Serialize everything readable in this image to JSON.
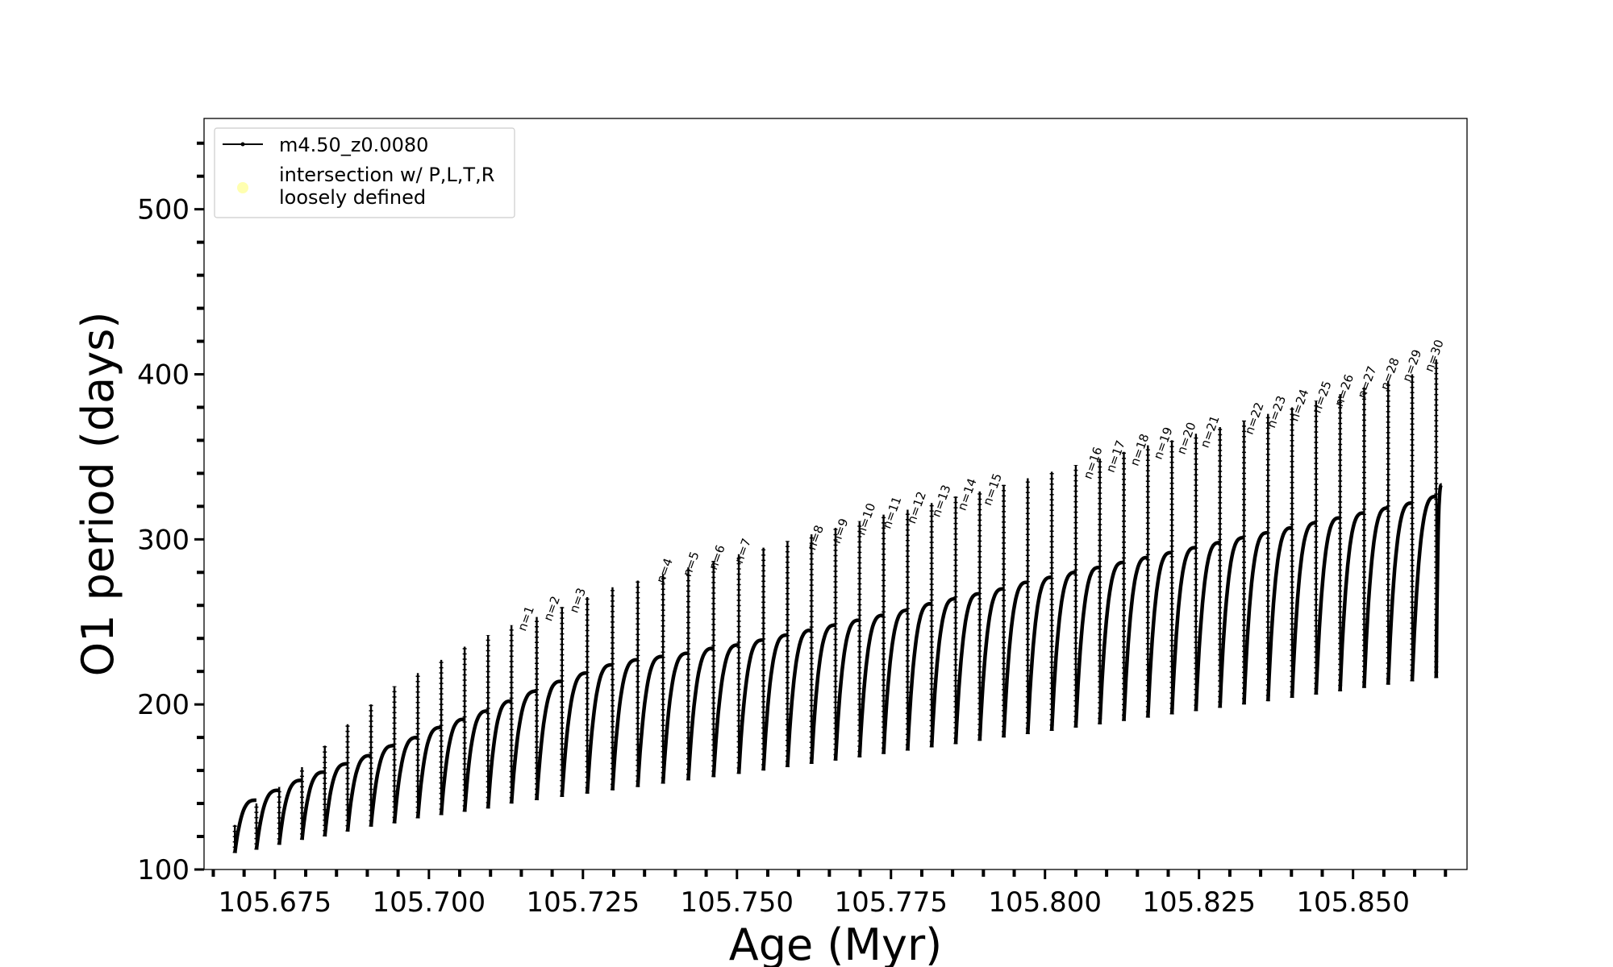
{
  "chart_data": {
    "type": "line",
    "xlabel": "Age (Myr)",
    "ylabel": "O1 period (days)",
    "xlim": [
      105.6635,
      105.8685
    ],
    "ylim": [
      100,
      555
    ],
    "x_ticks": [
      "105.675",
      "105.700",
      "105.725",
      "105.750",
      "105.775",
      "105.800",
      "105.825",
      "105.850"
    ],
    "y_ticks": [
      "100",
      "200",
      "300",
      "400",
      "500"
    ],
    "legend_position": "upper-left",
    "legend": [
      {
        "label": "m4.50_z0.0080",
        "color": "#000000",
        "marker": "line-with-dots"
      },
      {
        "label": "intersection w/ P,L,T,R\nloosely defined",
        "color": "#ffffb0",
        "marker": "circle"
      }
    ],
    "series": [
      {
        "name": "m4.50_z0.0080",
        "color": "#000000",
        "description": "thermal pulse cycles",
        "cycles": [
          {
            "start_age": 105.6685,
            "end_age": 105.672,
            "min": 110,
            "max": 142,
            "spike": 127
          },
          {
            "start_age": 105.672,
            "end_age": 105.6757,
            "min": 112,
            "max": 148,
            "spike": 140
          },
          {
            "start_age": 105.6757,
            "end_age": 105.6794,
            "min": 115,
            "max": 154,
            "spike": 150
          },
          {
            "start_age": 105.6794,
            "end_age": 105.6831,
            "min": 118,
            "max": 159,
            "spike": 162
          },
          {
            "start_age": 105.6831,
            "end_age": 105.6868,
            "min": 120,
            "max": 164,
            "spike": 175
          },
          {
            "start_age": 105.6868,
            "end_age": 105.6906,
            "min": 123,
            "max": 169,
            "spike": 188
          },
          {
            "start_age": 105.6906,
            "end_age": 105.6944,
            "min": 126,
            "max": 175,
            "spike": 200
          },
          {
            "start_age": 105.6944,
            "end_age": 105.6982,
            "min": 128,
            "max": 180,
            "spike": 211
          },
          {
            "start_age": 105.6982,
            "end_age": 105.702,
            "min": 131,
            "max": 186,
            "spike": 219
          },
          {
            "start_age": 105.702,
            "end_age": 105.7058,
            "min": 133,
            "max": 191,
            "spike": 227
          },
          {
            "start_age": 105.7058,
            "end_age": 105.7096,
            "min": 135,
            "max": 196,
            "spike": 235
          },
          {
            "start_age": 105.7096,
            "end_age": 105.7134,
            "min": 137,
            "max": 202,
            "spike": 242
          },
          {
            "start_age": 105.7134,
            "end_age": 105.7175,
            "min": 140,
            "max": 208,
            "spike": 248
          },
          {
            "start_age": 105.7175,
            "end_age": 105.7216,
            "min": 142,
            "max": 214,
            "spike": 253
          },
          {
            "start_age": 105.7216,
            "end_age": 105.7257,
            "min": 144,
            "max": 219,
            "spike": 259
          },
          {
            "start_age": 105.7257,
            "end_age": 105.7298,
            "min": 146,
            "max": 224,
            "spike": 265
          },
          {
            "start_age": 105.7298,
            "end_age": 105.7339,
            "min": 148,
            "max": 227,
            "spike": 271
          },
          {
            "start_age": 105.7339,
            "end_age": 105.738,
            "min": 150,
            "max": 229,
            "spike": 275
          },
          {
            "start_age": 105.738,
            "end_age": 105.7421,
            "min": 152,
            "max": 231,
            "spike": 279
          },
          {
            "start_age": 105.7421,
            "end_age": 105.7462,
            "min": 154,
            "max": 234,
            "spike": 283
          },
          {
            "start_age": 105.7462,
            "end_age": 105.7503,
            "min": 156,
            "max": 236,
            "spike": 287
          },
          {
            "start_age": 105.7503,
            "end_age": 105.7543,
            "min": 158,
            "max": 239,
            "spike": 291
          },
          {
            "start_age": 105.7543,
            "end_age": 105.7582,
            "min": 160,
            "max": 242,
            "spike": 295
          },
          {
            "start_age": 105.7582,
            "end_age": 105.7621,
            "min": 162,
            "max": 245,
            "spike": 299
          },
          {
            "start_age": 105.7621,
            "end_age": 105.766,
            "min": 164,
            "max": 248,
            "spike": 303
          },
          {
            "start_age": 105.766,
            "end_age": 105.7699,
            "min": 166,
            "max": 251,
            "spike": 307
          },
          {
            "start_age": 105.7699,
            "end_age": 105.7738,
            "min": 168,
            "max": 254,
            "spike": 311
          },
          {
            "start_age": 105.7738,
            "end_age": 105.7777,
            "min": 170,
            "max": 257,
            "spike": 315
          },
          {
            "start_age": 105.7777,
            "end_age": 105.7816,
            "min": 172,
            "max": 261,
            "spike": 318
          },
          {
            "start_age": 105.7816,
            "end_age": 105.7855,
            "min": 174,
            "max": 264,
            "spike": 322
          },
          {
            "start_age": 105.7855,
            "end_age": 105.7894,
            "min": 176,
            "max": 267,
            "spike": 326
          },
          {
            "start_age": 105.7894,
            "end_age": 105.7933,
            "min": 178,
            "max": 270,
            "spike": 329
          },
          {
            "start_age": 105.7933,
            "end_age": 105.7972,
            "min": 180,
            "max": 274,
            "spike": 333
          },
          {
            "start_age": 105.7972,
            "end_age": 105.8011,
            "min": 182,
            "max": 277,
            "spike": 337
          },
          {
            "start_age": 105.8011,
            "end_age": 105.805,
            "min": 184,
            "max": 280,
            "spike": 341
          },
          {
            "start_age": 105.805,
            "end_age": 105.8089,
            "min": 186,
            "max": 283,
            "spike": 345
          },
          {
            "start_age": 105.8089,
            "end_age": 105.8128,
            "min": 188,
            "max": 286,
            "spike": 349
          },
          {
            "start_age": 105.8128,
            "end_age": 105.8167,
            "min": 190,
            "max": 289,
            "spike": 353
          },
          {
            "start_age": 105.8167,
            "end_age": 105.8206,
            "min": 192,
            "max": 292,
            "spike": 357
          },
          {
            "start_age": 105.8206,
            "end_age": 105.8245,
            "min": 194,
            "max": 295,
            "spike": 360
          },
          {
            "start_age": 105.8245,
            "end_age": 105.8284,
            "min": 196,
            "max": 298,
            "spike": 364
          },
          {
            "start_age": 105.8284,
            "end_age": 105.8323,
            "min": 198,
            "max": 301,
            "spike": 368
          },
          {
            "start_age": 105.8323,
            "end_age": 105.8362,
            "min": 200,
            "max": 304,
            "spike": 372
          },
          {
            "start_age": 105.8362,
            "end_age": 105.8401,
            "min": 202,
            "max": 307,
            "spike": 376
          },
          {
            "start_age": 105.8401,
            "end_age": 105.844,
            "min": 204,
            "max": 310,
            "spike": 380
          },
          {
            "start_age": 105.844,
            "end_age": 105.8479,
            "min": 206,
            "max": 313,
            "spike": 384
          },
          {
            "start_age": 105.8479,
            "end_age": 105.8518,
            "min": 208,
            "max": 316,
            "spike": 388
          },
          {
            "start_age": 105.8518,
            "end_age": 105.8557,
            "min": 210,
            "max": 319,
            "spike": 392
          },
          {
            "start_age": 105.8557,
            "end_age": 105.8596,
            "min": 212,
            "max": 322,
            "spike": 396
          },
          {
            "start_age": 105.8596,
            "end_age": 105.8635,
            "min": 214,
            "max": 326,
            "spike": 400
          },
          {
            "start_age": 105.8635,
            "end_age": 105.8644,
            "min": 216,
            "max": 333,
            "spike": 409
          }
        ]
      }
    ],
    "annotations": [
      {
        "text": "n=1",
        "x": 105.715,
        "y": 243
      },
      {
        "text": "n=2",
        "x": 105.7192,
        "y": 249
      },
      {
        "text": "n=3",
        "x": 105.7234,
        "y": 254
      },
      {
        "text": "n=4",
        "x": 105.7375,
        "y": 272
      },
      {
        "text": "n=5",
        "x": 105.7418,
        "y": 276
      },
      {
        "text": "n=6",
        "x": 105.746,
        "y": 280
      },
      {
        "text": "n=7",
        "x": 105.7502,
        "y": 284
      },
      {
        "text": "n=8",
        "x": 105.762,
        "y": 292
      },
      {
        "text": "n=9",
        "x": 105.766,
        "y": 296
      },
      {
        "text": "n=10",
        "x": 105.77,
        "y": 301
      },
      {
        "text": "n=11",
        "x": 105.7742,
        "y": 305
      },
      {
        "text": "n=12",
        "x": 105.7782,
        "y": 308
      },
      {
        "text": "n=13",
        "x": 105.7822,
        "y": 312
      },
      {
        "text": "n=14",
        "x": 105.7864,
        "y": 316
      },
      {
        "text": "n=15",
        "x": 105.7905,
        "y": 319
      },
      {
        "text": "n=16",
        "x": 105.8068,
        "y": 335
      },
      {
        "text": "n=17",
        "x": 105.8105,
        "y": 339
      },
      {
        "text": "n=18",
        "x": 105.8144,
        "y": 343
      },
      {
        "text": "n=19",
        "x": 105.8182,
        "y": 347
      },
      {
        "text": "n=20",
        "x": 105.822,
        "y": 350
      },
      {
        "text": "n=21",
        "x": 105.8258,
        "y": 354
      },
      {
        "text": "n=22",
        "x": 105.833,
        "y": 362
      },
      {
        "text": "n=23",
        "x": 105.8366,
        "y": 366
      },
      {
        "text": "n=24",
        "x": 105.8403,
        "y": 370
      },
      {
        "text": "n=25",
        "x": 105.844,
        "y": 375
      },
      {
        "text": "n=26",
        "x": 105.8476,
        "y": 379
      },
      {
        "text": "n=27",
        "x": 105.8513,
        "y": 384
      },
      {
        "text": "n=28",
        "x": 105.855,
        "y": 389
      },
      {
        "text": "n=29",
        "x": 105.8586,
        "y": 394
      },
      {
        "text": "n=30",
        "x": 105.8622,
        "y": 400
      }
    ]
  }
}
